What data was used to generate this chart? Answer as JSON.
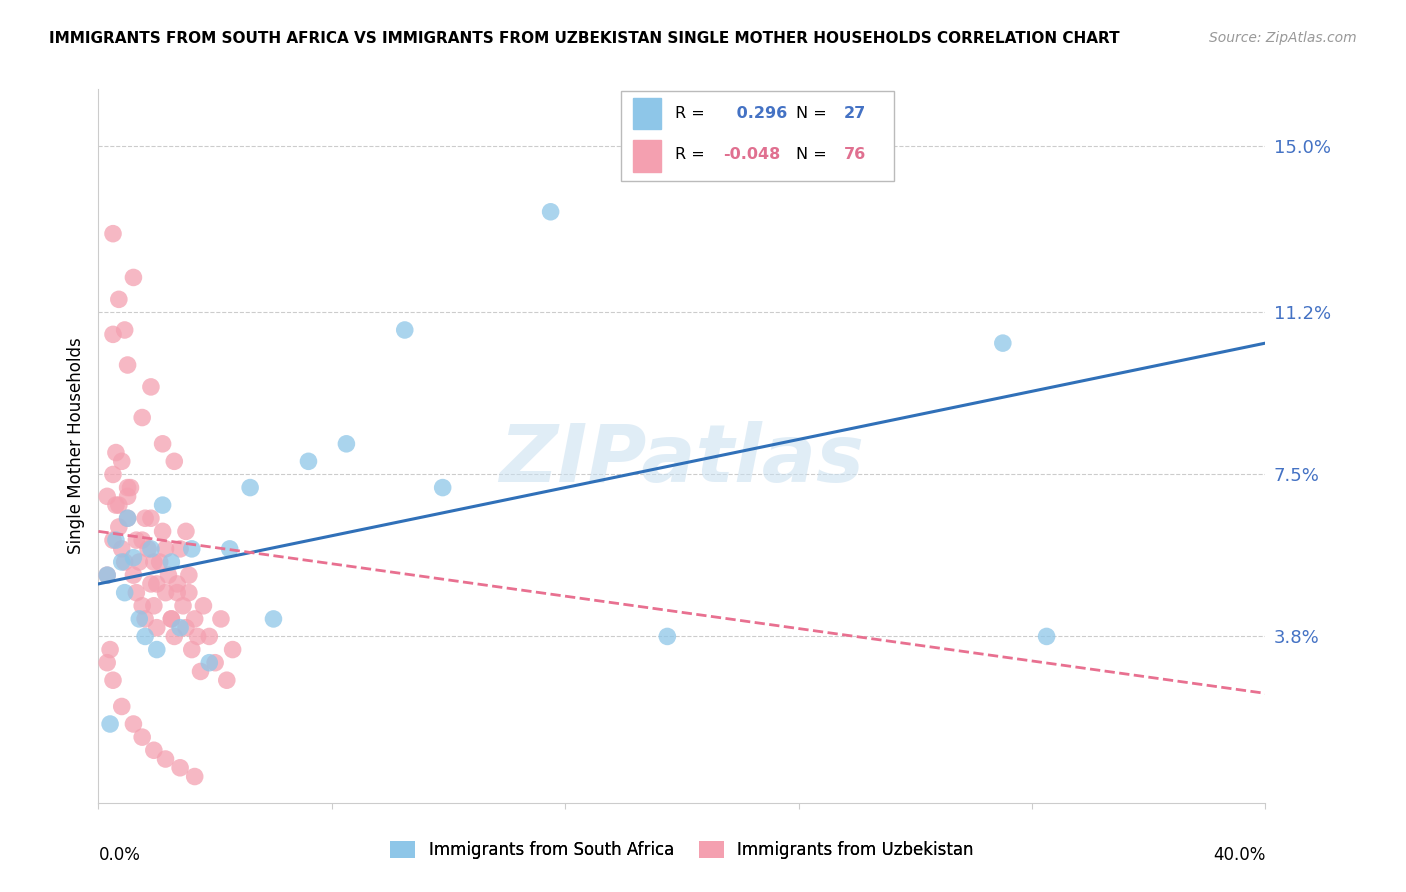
{
  "title": "IMMIGRANTS FROM SOUTH AFRICA VS IMMIGRANTS FROM UZBEKISTAN SINGLE MOTHER HOUSEHOLDS CORRELATION CHART",
  "source": "Source: ZipAtlas.com",
  "ylabel": "Single Mother Households",
  "ytick_labels": [
    "15.0%",
    "11.2%",
    "7.5%",
    "3.8%"
  ],
  "ytick_values": [
    0.15,
    0.112,
    0.075,
    0.038
  ],
  "xlim": [
    0.0,
    0.4
  ],
  "ylim": [
    0.0,
    0.163
  ],
  "legend_blue_r": "0.296",
  "legend_blue_n": "27",
  "legend_pink_r": "-0.048",
  "legend_pink_n": "76",
  "color_blue": "#8EC6E8",
  "color_pink": "#F4A0B0",
  "color_blue_line": "#3070B8",
  "color_pink_line": "#E87090",
  "watermark": "ZIPatlas",
  "blue_line_x0": 0.0,
  "blue_line_y0": 0.05,
  "blue_line_x1": 0.4,
  "blue_line_y1": 0.105,
  "pink_line_x0": 0.0,
  "pink_line_y0": 0.062,
  "pink_line_x1": 0.4,
  "pink_line_y1": 0.025,
  "blue_points_x": [
    0.003,
    0.004,
    0.006,
    0.008,
    0.009,
    0.01,
    0.012,
    0.014,
    0.016,
    0.018,
    0.02,
    0.022,
    0.025,
    0.028,
    0.032,
    0.038,
    0.045,
    0.052,
    0.06,
    0.072,
    0.085,
    0.105,
    0.118,
    0.155,
    0.195,
    0.31,
    0.325
  ],
  "blue_points_y": [
    0.052,
    0.018,
    0.06,
    0.055,
    0.048,
    0.065,
    0.056,
    0.042,
    0.038,
    0.058,
    0.035,
    0.068,
    0.055,
    0.04,
    0.058,
    0.032,
    0.058,
    0.072,
    0.042,
    0.078,
    0.082,
    0.108,
    0.072,
    0.135,
    0.038,
    0.105,
    0.038
  ],
  "pink_points_x": [
    0.003,
    0.004,
    0.005,
    0.005,
    0.006,
    0.007,
    0.008,
    0.008,
    0.009,
    0.01,
    0.01,
    0.011,
    0.012,
    0.013,
    0.014,
    0.015,
    0.016,
    0.017,
    0.018,
    0.018,
    0.019,
    0.02,
    0.021,
    0.022,
    0.023,
    0.024,
    0.025,
    0.026,
    0.027,
    0.028,
    0.029,
    0.03,
    0.031,
    0.032,
    0.033,
    0.034,
    0.035,
    0.036,
    0.038,
    0.04,
    0.042,
    0.044,
    0.046,
    0.005,
    0.007,
    0.009,
    0.012,
    0.015,
    0.018,
    0.022,
    0.026,
    0.03,
    0.003,
    0.005,
    0.007,
    0.01,
    0.013,
    0.016,
    0.019,
    0.023,
    0.027,
    0.031,
    0.003,
    0.005,
    0.008,
    0.012,
    0.015,
    0.019,
    0.023,
    0.028,
    0.033,
    0.006,
    0.01,
    0.015,
    0.02,
    0.025
  ],
  "pink_points_y": [
    0.052,
    0.035,
    0.06,
    0.107,
    0.068,
    0.063,
    0.058,
    0.078,
    0.055,
    0.065,
    0.1,
    0.072,
    0.052,
    0.048,
    0.055,
    0.045,
    0.042,
    0.058,
    0.05,
    0.065,
    0.045,
    0.04,
    0.055,
    0.062,
    0.048,
    0.052,
    0.042,
    0.038,
    0.05,
    0.058,
    0.045,
    0.04,
    0.048,
    0.035,
    0.042,
    0.038,
    0.03,
    0.045,
    0.038,
    0.032,
    0.042,
    0.028,
    0.035,
    0.13,
    0.115,
    0.108,
    0.12,
    0.088,
    0.095,
    0.082,
    0.078,
    0.062,
    0.07,
    0.075,
    0.068,
    0.072,
    0.06,
    0.065,
    0.055,
    0.058,
    0.048,
    0.052,
    0.032,
    0.028,
    0.022,
    0.018,
    0.015,
    0.012,
    0.01,
    0.008,
    0.006,
    0.08,
    0.07,
    0.06,
    0.05,
    0.042
  ]
}
